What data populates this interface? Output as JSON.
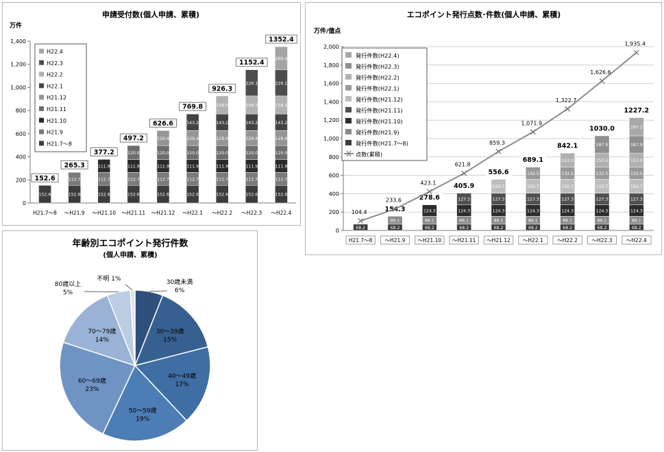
{
  "chart_data": [
    {
      "id": "applications",
      "type": "bar",
      "stacked": true,
      "title": "申請受付数(個人申請、累積)",
      "ylabel": "万件",
      "xlabel": "",
      "ylim": [
        0,
        1400
      ],
      "yticks": [
        "0",
        "200",
        "400",
        "600",
        "800",
        "1,000",
        "1,200",
        "1,400"
      ],
      "grid": false,
      "legend_position": "top-left",
      "categories": [
        "H21.7～8",
        "～H21.9",
        "～H21.10",
        "～H21.11",
        "～H21.12",
        "～H22.1",
        "～H22.2",
        "～H22.3",
        "～H22.4"
      ],
      "totals": [
        152.6,
        265.3,
        377.2,
        497.2,
        626.6,
        769.8,
        926.3,
        1152.4,
        1352.4
      ],
      "total_labels": [
        "152.6",
        "265.3",
        "377.2",
        "497.2",
        "626.6",
        "769.8",
        "926.3",
        "1152.4",
        "1352.4"
      ],
      "legend": [
        "H22.4",
        "H22.3",
        "H22.2",
        "H22.1",
        "H21.12",
        "H21.11",
        "H21.10",
        "H21.9",
        "H21.7～8"
      ],
      "series": [
        {
          "name": "H21.7～8",
          "color": "#3c3c3c",
          "value": 152.6,
          "label": "152.6",
          "start": 0
        },
        {
          "name": "H21.9",
          "color": "#7a7a7a",
          "value": 112.7,
          "label": "112.7",
          "start": 1
        },
        {
          "name": "H21.10",
          "color": "#2a2a2a",
          "value": 111.9,
          "label": "111.9",
          "start": 2
        },
        {
          "name": "H21.11",
          "color": "#6d6d6d",
          "value": 120.0,
          "label": "120.0",
          "start": 3
        },
        {
          "name": "H21.12",
          "color": "#959595",
          "value": 129.4,
          "label": "129.4",
          "start": 4
        },
        {
          "name": "H22.1",
          "color": "#444444",
          "value": 143.2,
          "label": "143.2",
          "start": 5
        },
        {
          "name": "H22.2",
          "color": "#b2b2b2",
          "value": 156.5,
          "label": "156.5",
          "start": 6
        },
        {
          "name": "H22.3",
          "color": "#4d4d4d",
          "value": 226.1,
          "label": "226.1",
          "start": 7
        },
        {
          "name": "H22.4",
          "color": "#a4a4a4",
          "value": 200.0,
          "label": "200.0",
          "start": 8
        }
      ]
    },
    {
      "id": "eco_points",
      "type": "bar",
      "stacked": true,
      "title": "エコポイント発行点数･件数(個人申請、累積)",
      "ylabel": "万件/億点",
      "xlabel": "",
      "ylim": [
        0,
        2000
      ],
      "yticks": [
        "0",
        "200",
        "400",
        "600",
        "800",
        "1,000",
        "1,200",
        "1,400",
        "1,600",
        "1,800",
        "2,000"
      ],
      "grid": true,
      "legend_position": "top-left",
      "categories": [
        "H21.7～8",
        "～H21.9",
        "～H21.10",
        "～H21.11",
        "～H21.12",
        "～H22.1",
        "～H22.2",
        "～H22.3",
        "～H22.4"
      ],
      "totals": [
        68.2,
        154.3,
        278.6,
        405.9,
        556.6,
        689.1,
        842.1,
        1030.0,
        1227.2
      ],
      "total_labels": [
        "",
        "154.3",
        "278.6",
        "405.9",
        "556.6",
        "689.1",
        "842.1",
        "1030.0",
        "1227.2"
      ],
      "legend": [
        "発行件数(H22.4)",
        "発行件数(H22.3)",
        "発行件数(H22.2)",
        "発行件数(H22.1)",
        "発行件数(H21.12)",
        "発行件数(H21.11)",
        "発行件数(H21.10)",
        "発行件数(H21.9)",
        "発行件数(H21.7～8)",
        "点数(累積)"
      ],
      "series": [
        {
          "name": "発行件数(H21.7～8)",
          "color": "#3c3c3c",
          "value": 68.2,
          "label": "68.2",
          "start": 0
        },
        {
          "name": "発行件数(H21.9)",
          "color": "#8a8a8a",
          "value": 86.1,
          "label": "86.1",
          "start": 1
        },
        {
          "name": "発行件数(H21.10)",
          "color": "#2c2c2c",
          "value": 124.3,
          "label": "124.3",
          "start": 2
        },
        {
          "name": "発行件数(H21.11)",
          "color": "#505050",
          "value": 127.3,
          "label": "127.3",
          "start": 3
        },
        {
          "name": "発行件数(H21.12)",
          "color": "#bdbdbd",
          "value": 150.7,
          "label": "150.7",
          "start": 4
        },
        {
          "name": "発行件数(H22.1)",
          "color": "#999999",
          "value": 132.5,
          "label": "132.5",
          "start": 5
        },
        {
          "name": "発行件数(H22.2)",
          "color": "#b0b0b0",
          "value": 153.0,
          "label": "153.0",
          "start": 6
        },
        {
          "name": "発行件数(H22.3)",
          "color": "#8f8f8f",
          "value": 187.9,
          "label": "187.9",
          "start": 7
        },
        {
          "name": "発行件数(H22.4)",
          "color": "#a8a8a8",
          "value": 197.2,
          "label": "197.2",
          "start": 8
        }
      ],
      "line": {
        "name": "点数(累積)",
        "color": "#8c8c8c",
        "values": [
          104.4,
          233.6,
          423.1,
          621.8,
          859.3,
          1071.9,
          1322.7,
          1626.6,
          1935.4
        ],
        "labels": [
          "104.4",
          "233.6",
          "423.1",
          "621.8",
          "859.3",
          "1,071.9",
          "1,322.7",
          "1,626.6",
          "1,935.4"
        ]
      }
    },
    {
      "id": "age_distribution",
      "type": "pie",
      "title": "年齢別エコポイント発行件数",
      "subtitle": "(個人申請、累積)",
      "slices": [
        {
          "label": "30歳未満",
          "pct": "6%",
          "value": 6,
          "color": "#2f4f7c"
        },
        {
          "label": "30～39歳",
          "pct": "15%",
          "value": 15,
          "color": "#36608f"
        },
        {
          "label": "40～49歳",
          "pct": "17%",
          "value": 17,
          "color": "#3e6ea3"
        },
        {
          "label": "50～59歳",
          "pct": "19%",
          "value": 19,
          "color": "#4c7db5"
        },
        {
          "label": "60～69歳",
          "pct": "23%",
          "value": 23,
          "color": "#6f94c4"
        },
        {
          "label": "70～79歳",
          "pct": "14%",
          "value": 14,
          "color": "#99b2d6"
        },
        {
          "label": "80歳以上",
          "pct": "5%",
          "value": 5,
          "color": "#bccce3"
        },
        {
          "label": "不明",
          "pct": "1%",
          "value": 1,
          "color": "#dce4f0"
        }
      ]
    }
  ]
}
